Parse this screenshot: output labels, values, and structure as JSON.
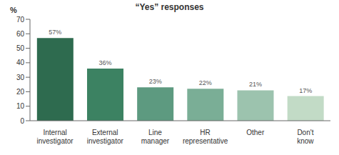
{
  "chart_data": {
    "type": "bar",
    "title": "“Yes” responses",
    "y_label": "%",
    "categories": [
      "Internal investigator",
      "External investigator",
      "Line manager",
      "HR representative",
      "Other",
      "Don't know"
    ],
    "values": [
      57,
      36,
      23,
      22,
      21,
      17
    ],
    "value_labels": [
      "57%",
      "36%",
      "23%",
      "22%",
      "21%",
      "17%"
    ],
    "colors": [
      "#2e6b4f",
      "#3c8262",
      "#5d9a80",
      "#7aae96",
      "#9cc3ae",
      "#c2dbc6"
    ],
    "ylim": [
      0,
      70
    ],
    "yticks": [
      0,
      10,
      20,
      30,
      40,
      50,
      60,
      70
    ],
    "grid": false,
    "data_labels": true
  }
}
